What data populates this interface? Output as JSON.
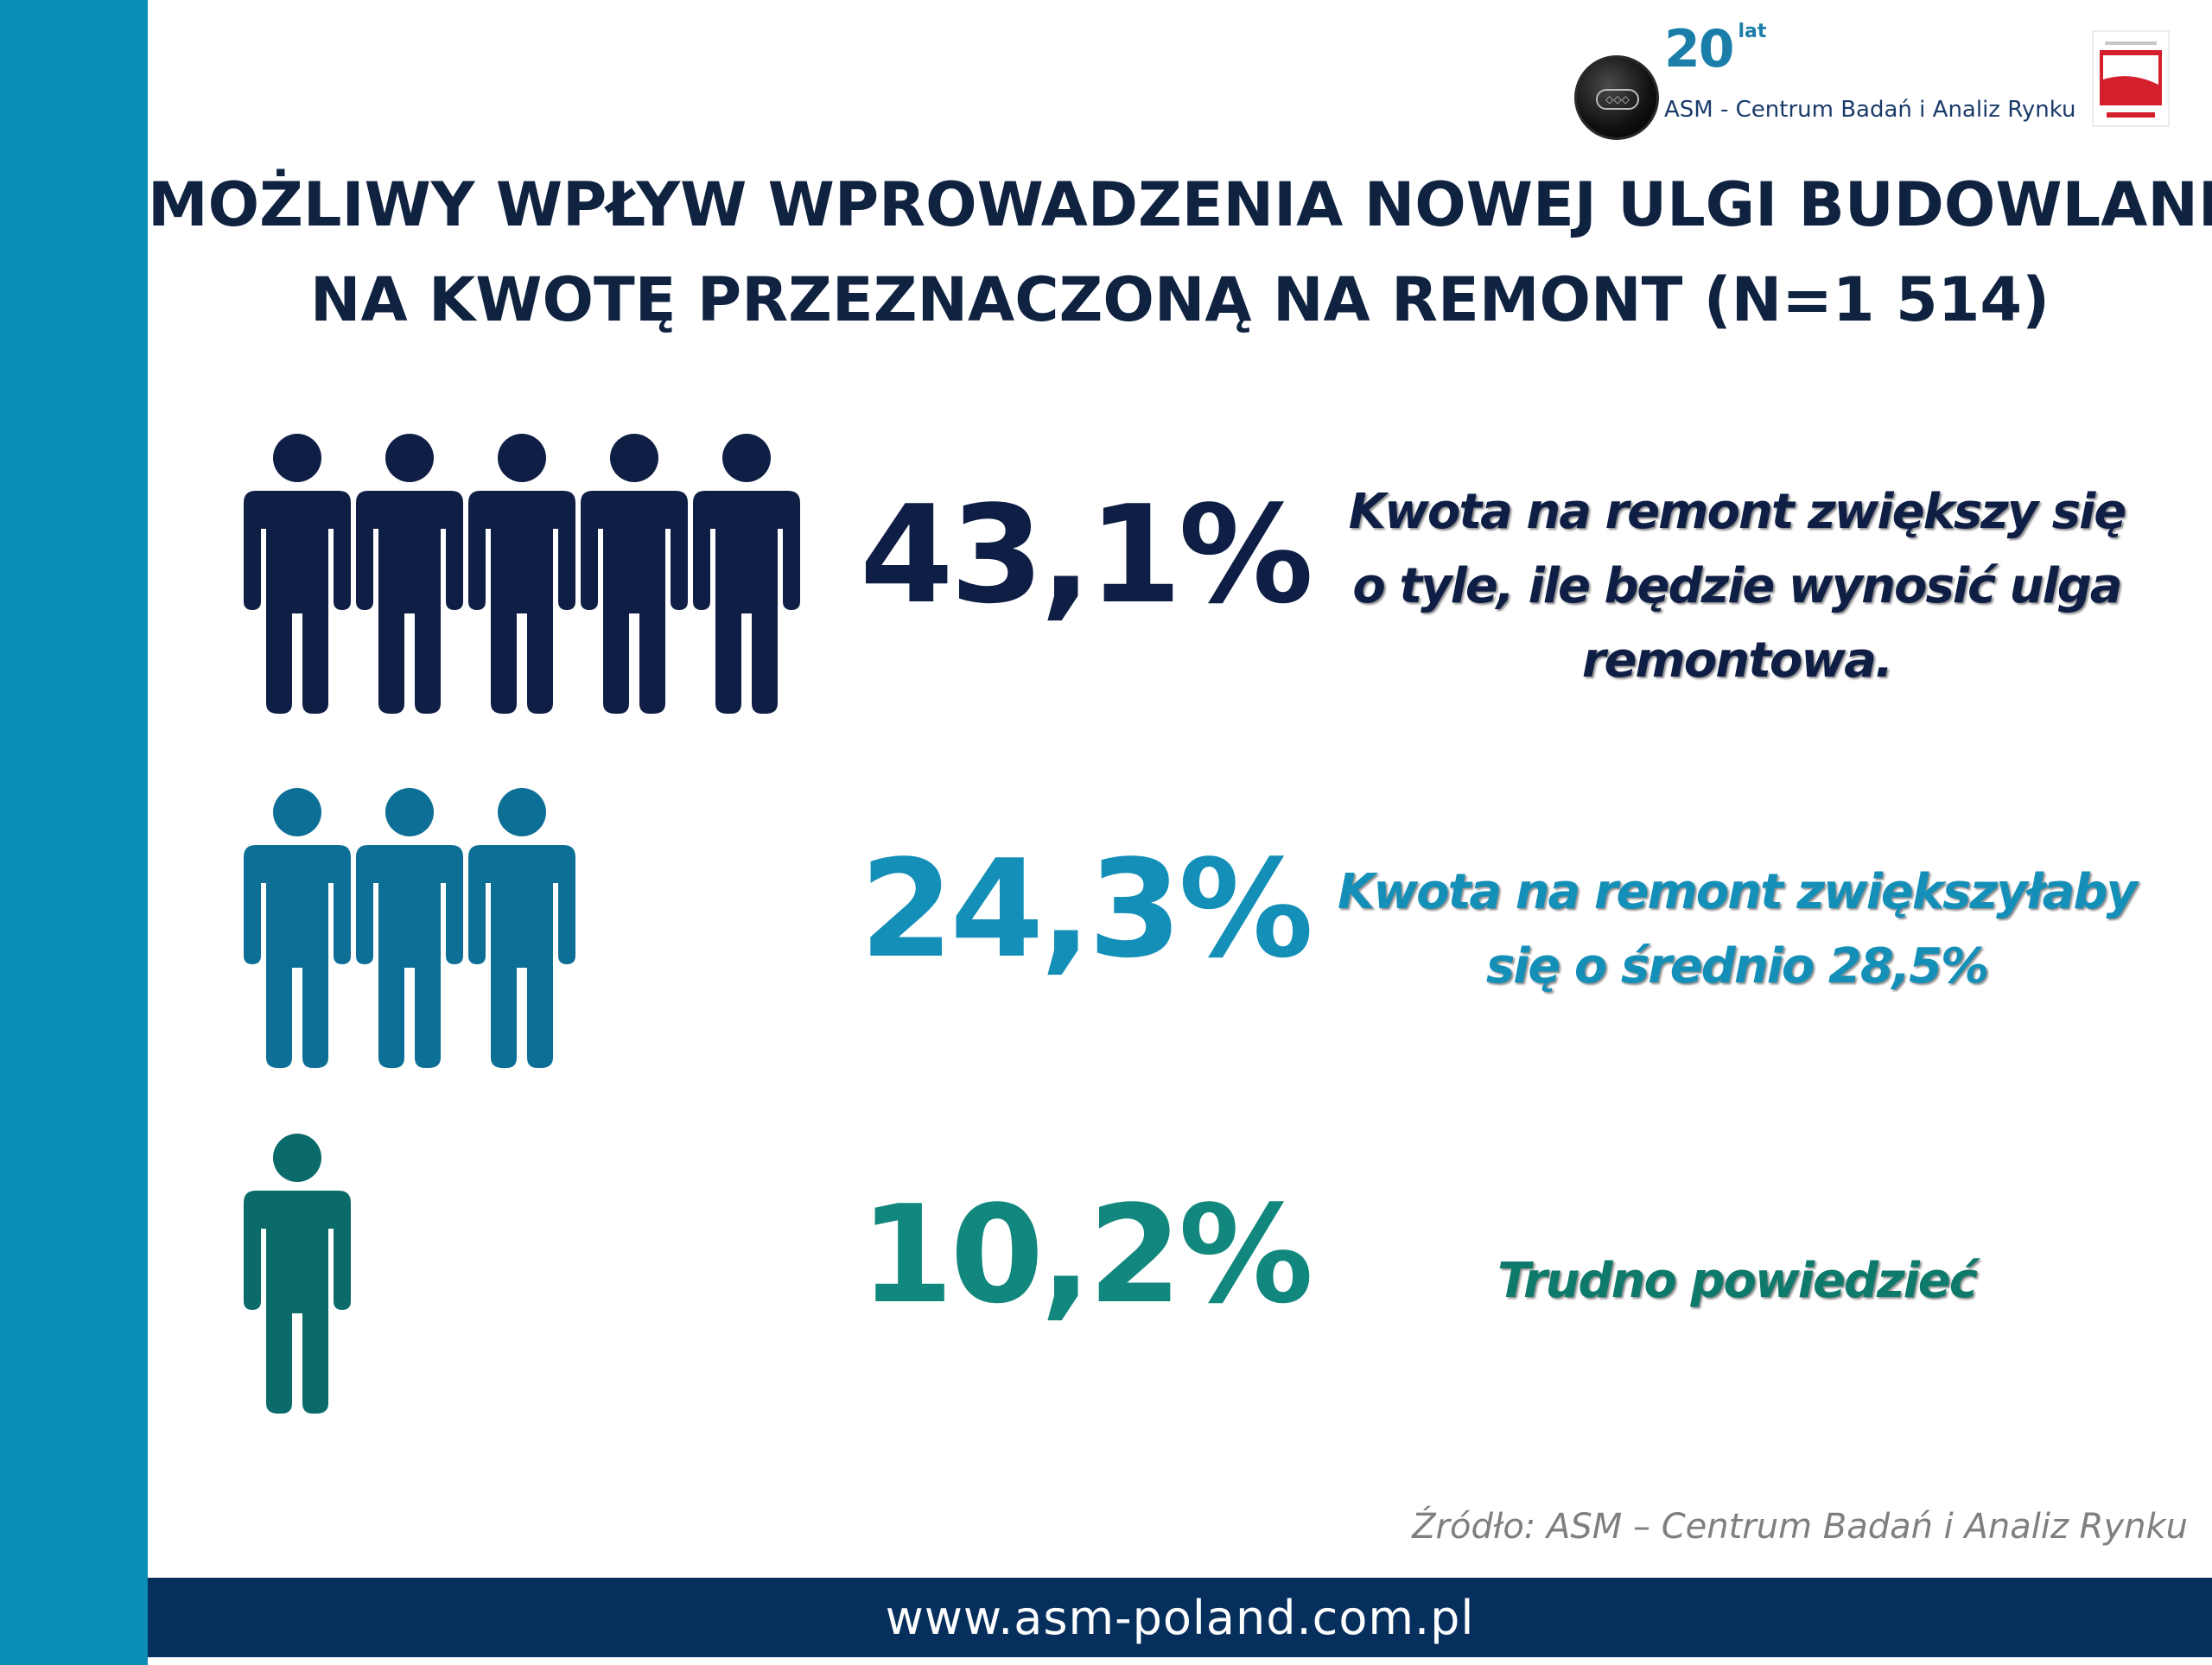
{
  "header": {
    "anniversary_number": "20",
    "anniversary_word": "lat",
    "company_name": "ASM - Centrum Badań i Analiz Rynku"
  },
  "title": {
    "line1": "MOŻLIWY WPŁYW WPROWADZENIA NOWEJ ULGI BUDOWLANEJ",
    "line2": "NA KWOTĘ PRZEZNACZONĄ NA REMONT (N=1 514)"
  },
  "chart_data": {
    "type": "pictograph",
    "unit": "%",
    "items": [
      {
        "value": 43.1,
        "label": "43,1%",
        "icons": 5,
        "color": "#0f1e45",
        "description": [
          "Kwota na remont zwiększy się",
          "o tyle, ile będzie wynosić ulga",
          "remontowa."
        ]
      },
      {
        "value": 24.3,
        "label": "24,3%",
        "icons": 3,
        "color": "#0e6f96",
        "description": [
          "Kwota na remont zwiększyłaby",
          "się o średnio 28,5%"
        ]
      },
      {
        "value": 10.2,
        "label": "10,2%",
        "icons": 1,
        "color": "#0b6a6a",
        "description": [
          "Trudno powiedzieć"
        ]
      }
    ]
  },
  "colors": {
    "side_bar": "#0a8eb5",
    "footer_bar": "#062f5d",
    "pct_row1": "#0f1e45",
    "pct_row2": "#148fb8",
    "pct_row3": "#11877d",
    "desc_row1": "#0f1e45",
    "desc_row2": "#148fb8",
    "desc_row3": "#0e7a6b"
  },
  "source": "Źródło: ASM – Centrum Badań i Analiz Rynku",
  "footer": {
    "url": "www.asm-poland.com.pl"
  }
}
